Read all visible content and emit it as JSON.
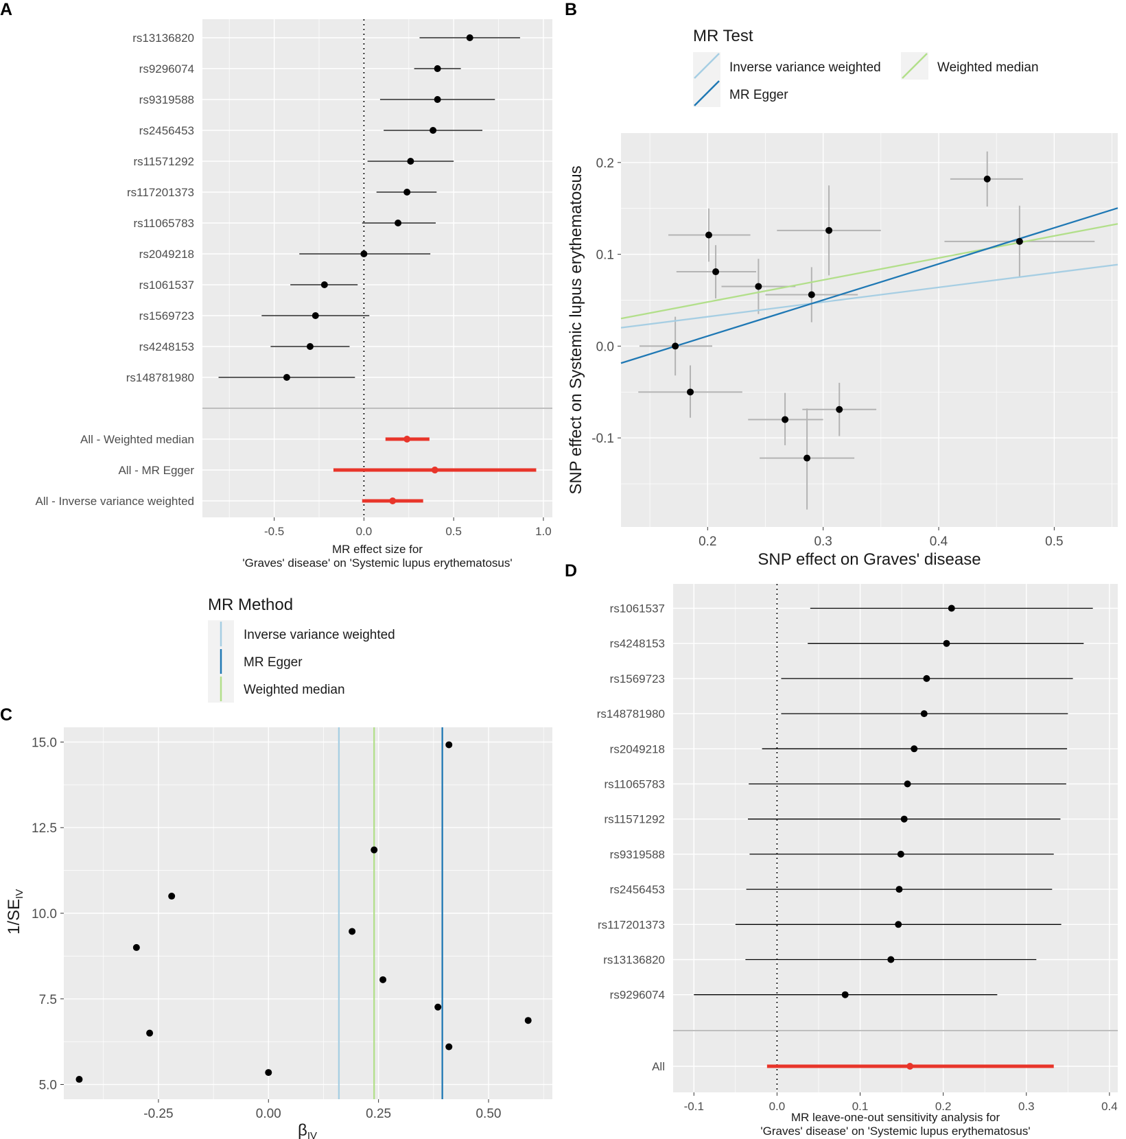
{
  "colors": {
    "panel_bg": "#EBEBEB",
    "grid": "#FFFFFF",
    "point": "#000000",
    "summary": "#E8352A",
    "ivw": "#A6CEE3",
    "egger": "#1F78B4",
    "wmedian": "#B2DF8A",
    "errorbar_grey": "#B3B3B3"
  },
  "chart_data": [
    {
      "panel": "A",
      "type": "forest",
      "xlabel_line1": "MR effect size for",
      "xlabel_line2": "'Graves' disease' on 'Systemic lupus erythematosus'",
      "xlim": [
        -0.9,
        1.05
      ],
      "xticks": [
        -0.5,
        0.0,
        0.5,
        1.0
      ],
      "xtick_labels": [
        "-0.5",
        "0.0",
        "0.5",
        "1.0"
      ],
      "snps": [
        {
          "label": "rs13136820",
          "est": 0.59,
          "lo": 0.31,
          "hi": 0.87
        },
        {
          "label": "rs9296074",
          "est": 0.41,
          "lo": 0.28,
          "hi": 0.54
        },
        {
          "label": "rs9319588",
          "est": 0.41,
          "lo": 0.09,
          "hi": 0.73
        },
        {
          "label": "rs2456453",
          "est": 0.385,
          "lo": 0.11,
          "hi": 0.66
        },
        {
          "label": "rs11571292",
          "est": 0.26,
          "lo": 0.02,
          "hi": 0.5
        },
        {
          "label": "rs117201373",
          "est": 0.24,
          "lo": 0.07,
          "hi": 0.405
        },
        {
          "label": "rs11065783",
          "est": 0.19,
          "lo": -0.01,
          "hi": 0.4
        },
        {
          "label": "rs2049218",
          "est": 0.0,
          "lo": -0.36,
          "hi": 0.37
        },
        {
          "label": "rs1061537",
          "est": -0.22,
          "lo": -0.41,
          "hi": -0.035
        },
        {
          "label": "rs1569723",
          "est": -0.27,
          "lo": -0.57,
          "hi": 0.03
        },
        {
          "label": "rs4248153",
          "est": -0.3,
          "lo": -0.52,
          "hi": -0.08
        },
        {
          "label": "rs148781980",
          "est": -0.43,
          "lo": -0.81,
          "hi": -0.05
        }
      ],
      "summary": [
        {
          "label": "All - Weighted median",
          "est": 0.24,
          "lo": 0.12,
          "hi": 0.365
        },
        {
          "label": "All - MR Egger",
          "est": 0.395,
          "lo": -0.17,
          "hi": 0.96
        },
        {
          "label": "All - Inverse variance weighted",
          "est": 0.16,
          "lo": -0.01,
          "hi": 0.33
        }
      ]
    },
    {
      "panel": "B",
      "type": "scatter",
      "xlabel": "SNP effect on Graves' disease",
      "ylabel": "SNP effect on Systemic lupus erythematosus",
      "xlim": [
        0.125,
        0.555
      ],
      "ylim": [
        -0.197,
        0.232
      ],
      "xticks": [
        0.2,
        0.3,
        0.4,
        0.5
      ],
      "xtick_labels": [
        "0.2",
        "0.3",
        "0.4",
        "0.5"
      ],
      "yticks": [
        -0.1,
        0.0,
        0.1,
        0.2
      ],
      "ytick_labels": [
        "-0.1",
        "0.0",
        "0.1",
        "0.2"
      ],
      "legend_title": "MR Test",
      "legend": [
        "Inverse variance weighted",
        "MR Egger",
        "Weighted median"
      ],
      "points": [
        {
          "x": 0.442,
          "y": 0.182,
          "xlo": 0.41,
          "xhi": 0.473,
          "ylo": 0.152,
          "yhi": 0.212
        },
        {
          "x": 0.47,
          "y": 0.114,
          "xlo": 0.405,
          "xhi": 0.535,
          "ylo": 0.075,
          "yhi": 0.153
        },
        {
          "x": 0.305,
          "y": 0.126,
          "xlo": 0.26,
          "xhi": 0.35,
          "ylo": 0.077,
          "yhi": 0.175
        },
        {
          "x": 0.201,
          "y": 0.121,
          "xlo": 0.166,
          "xhi": 0.237,
          "ylo": 0.092,
          "yhi": 0.15
        },
        {
          "x": 0.207,
          "y": 0.081,
          "xlo": 0.173,
          "xhi": 0.242,
          "ylo": 0.052,
          "yhi": 0.11
        },
        {
          "x": 0.244,
          "y": 0.065,
          "xlo": 0.212,
          "xhi": 0.276,
          "ylo": 0.035,
          "yhi": 0.095
        },
        {
          "x": 0.29,
          "y": 0.056,
          "xlo": 0.25,
          "xhi": 0.33,
          "ylo": 0.026,
          "yhi": 0.086
        },
        {
          "x": 0.172,
          "y": 0.0,
          "xlo": 0.141,
          "xhi": 0.204,
          "ylo": -0.032,
          "yhi": 0.032
        },
        {
          "x": 0.185,
          "y": -0.05,
          "xlo": 0.14,
          "xhi": 0.23,
          "ylo": -0.078,
          "yhi": -0.021
        },
        {
          "x": 0.314,
          "y": -0.069,
          "xlo": 0.282,
          "xhi": 0.346,
          "ylo": -0.098,
          "yhi": -0.04
        },
        {
          "x": 0.267,
          "y": -0.08,
          "xlo": 0.235,
          "xhi": 0.3,
          "ylo": -0.108,
          "yhi": -0.051
        },
        {
          "x": 0.286,
          "y": -0.122,
          "xlo": 0.245,
          "xhi": 0.327,
          "ylo": -0.178,
          "yhi": -0.068
        }
      ],
      "lines": [
        {
          "name": "Inverse variance weighted",
          "intercept": 0.0,
          "slope": 0.16
        },
        {
          "name": "Weighted median",
          "intercept": 0.0,
          "slope": 0.24
        },
        {
          "name": "MR Egger",
          "intercept": -0.0677,
          "slope": 0.393
        }
      ]
    },
    {
      "panel": "C",
      "type": "scatter",
      "xlabel": "β",
      "xlabel_sub": "IV",
      "ylabel": "1/SE",
      "ylabel_sub": "IV",
      "xlim": [
        -0.465,
        0.645
      ],
      "ylim": [
        4.57,
        15.43
      ],
      "xticks": [
        -0.25,
        0.0,
        0.25,
        0.5
      ],
      "xtick_labels": [
        "-0.25",
        "0.00",
        "0.25",
        "0.50"
      ],
      "yticks": [
        5.0,
        7.5,
        10.0,
        12.5,
        15.0
      ],
      "ytick_labels": [
        "5.0",
        "7.5",
        "10.0",
        "12.5",
        "15.0"
      ],
      "legend_title": "MR Method",
      "legend": [
        "Inverse variance weighted",
        "MR Egger",
        "Weighted median"
      ],
      "vlines": [
        {
          "name": "Inverse variance weighted",
          "x": 0.16
        },
        {
          "name": "Weighted median",
          "x": 0.24
        },
        {
          "name": "MR Egger",
          "x": 0.395
        }
      ],
      "points": [
        {
          "x": 0.41,
          "y": 14.92
        },
        {
          "x": 0.24,
          "y": 11.85
        },
        {
          "x": -0.22,
          "y": 10.5
        },
        {
          "x": 0.19,
          "y": 9.47
        },
        {
          "x": -0.3,
          "y": 9.0
        },
        {
          "x": 0.26,
          "y": 8.06
        },
        {
          "x": 0.385,
          "y": 7.26
        },
        {
          "x": 0.59,
          "y": 6.87
        },
        {
          "x": -0.27,
          "y": 6.5
        },
        {
          "x": 0.41,
          "y": 6.1
        },
        {
          "x": 0.0,
          "y": 5.35
        },
        {
          "x": -0.43,
          "y": 5.15
        }
      ]
    },
    {
      "panel": "D",
      "type": "forest",
      "xlabel_line1": "MR leave-one-out sensitivity analysis for",
      "xlabel_line2": "'Graves' disease' on 'Systemic lupus erythematosus'",
      "xlim": [
        -0.125,
        0.41
      ],
      "xticks": [
        -0.1,
        0.0,
        0.1,
        0.2,
        0.3,
        0.4
      ],
      "xtick_labels": [
        "-0.1",
        "0.0",
        "0.1",
        "0.2",
        "0.3",
        "0.4"
      ],
      "snps": [
        {
          "label": "rs1061537",
          "est": 0.21,
          "lo": 0.04,
          "hi": 0.38
        },
        {
          "label": "rs4248153",
          "est": 0.204,
          "lo": 0.037,
          "hi": 0.369
        },
        {
          "label": "rs1569723",
          "est": 0.18,
          "lo": 0.005,
          "hi": 0.356
        },
        {
          "label": "rs148781980",
          "est": 0.177,
          "lo": 0.005,
          "hi": 0.35
        },
        {
          "label": "rs2049218",
          "est": 0.165,
          "lo": -0.018,
          "hi": 0.349
        },
        {
          "label": "rs11065783",
          "est": 0.157,
          "lo": -0.034,
          "hi": 0.348
        },
        {
          "label": "rs11571292",
          "est": 0.153,
          "lo": -0.035,
          "hi": 0.341
        },
        {
          "label": "rs9319588",
          "est": 0.149,
          "lo": -0.033,
          "hi": 0.333
        },
        {
          "label": "rs2456453",
          "est": 0.147,
          "lo": -0.037,
          "hi": 0.331
        },
        {
          "label": "rs117201373",
          "est": 0.146,
          "lo": -0.05,
          "hi": 0.342
        },
        {
          "label": "rs13136820",
          "est": 0.137,
          "lo": -0.038,
          "hi": 0.312
        },
        {
          "label": "rs9296074",
          "est": 0.082,
          "lo": -0.1,
          "hi": 0.265
        }
      ],
      "summary": [
        {
          "label": "All",
          "est": 0.16,
          "lo": -0.012,
          "hi": 0.333
        }
      ]
    }
  ]
}
